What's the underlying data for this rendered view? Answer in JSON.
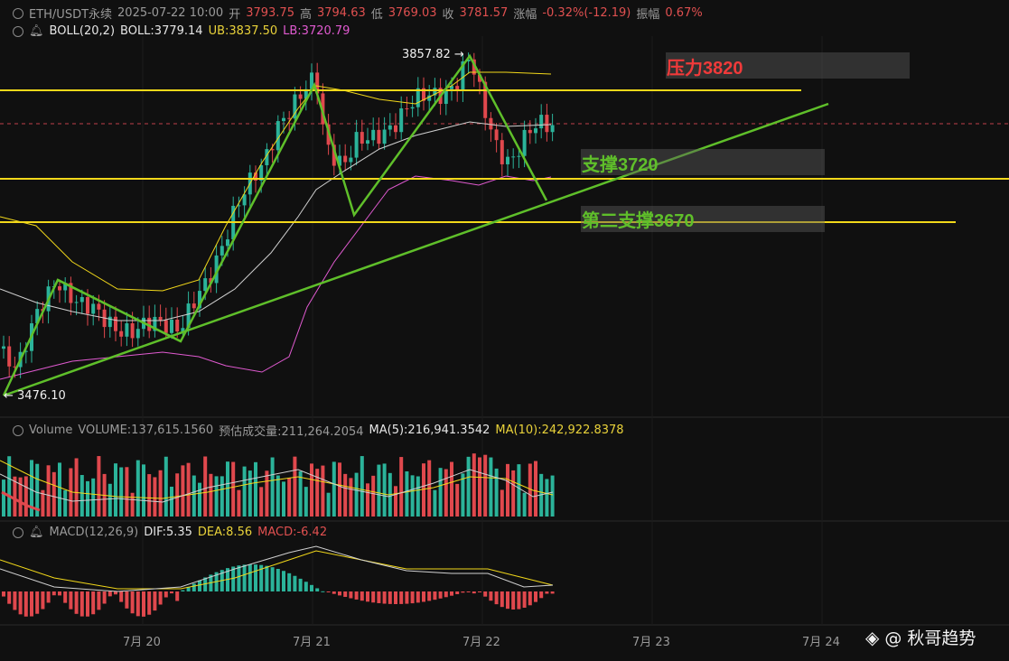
{
  "header": {
    "symbol": "ETH/USDT永续",
    "datetime": "2025-07-22 10:00",
    "open_label": "开",
    "open": "3793.75",
    "high_label": "高",
    "high": "3794.63",
    "low_label": "低",
    "low": "3769.03",
    "close_label": "收",
    "close": "3781.57",
    "change_label": "涨幅",
    "change": "-0.32%(-12.19)",
    "amplitude_label": "振幅",
    "amplitude": "0.67%"
  },
  "boll": {
    "name": "BOLL(20,2)",
    "boll": "BOLL:3779.14",
    "ub": "UB:3837.50",
    "lb": "LB:3720.79"
  },
  "volume": {
    "name": "Volume",
    "volume": "VOLUME:137,615.1560",
    "estimate": "预估成交量:211,264.2054",
    "ma5": "MA(5):216,941.3542",
    "ma10": "MA(10):242,922.8378"
  },
  "macd": {
    "name": "MACD(12,26,9)",
    "dif": "DIF:5.35",
    "dea": "DEA:8.56",
    "macd": "MACD:-6.42"
  },
  "annotations": {
    "high_mark": "3857.82",
    "low_mark": "3476.10",
    "resistance": "压力3820",
    "support1": "支撑3720",
    "support2": "第二支撑3670"
  },
  "dates": [
    "7月 20",
    "7月 21",
    "7月 22",
    "7月 23",
    "7月 24"
  ],
  "colors": {
    "up": "#2bb39a",
    "down": "#e0484d",
    "yellow": "#f2d81a",
    "green": "#5fbf2a",
    "resistance": "#f03a3a"
  },
  "watermark": "@ 秋哥趋势"
}
